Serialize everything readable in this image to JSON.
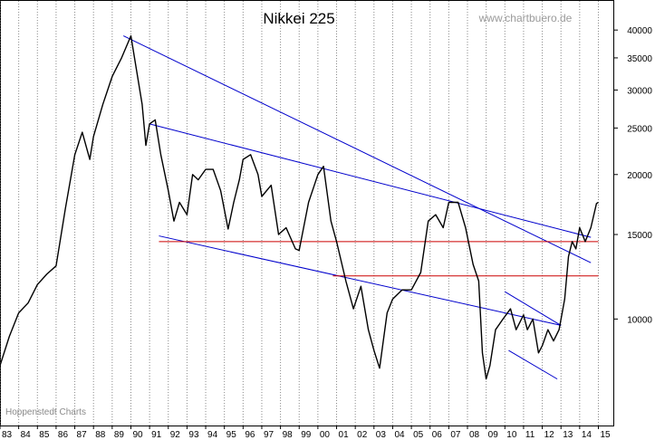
{
  "chart_data": {
    "type": "line",
    "title": "Nikkei 225",
    "watermark": "www.chartbuero.de",
    "source": "Hoppenstedt Charts",
    "yscale": "log",
    "ylim": [
      6000,
      46000
    ],
    "xlim": [
      1983.0,
      2015.8
    ],
    "grid": "vertical dotted lines at each year",
    "y_ticks": [
      10000,
      15000,
      20000,
      25000,
      30000,
      35000,
      40000
    ],
    "y_tick_labels": [
      "10000",
      "15000",
      "20000",
      "25000",
      "30000",
      "35000",
      "40000"
    ],
    "x_ticks": [
      1983,
      1984,
      1985,
      1986,
      1987,
      1988,
      1989,
      1990,
      1991,
      1992,
      1993,
      1994,
      1995,
      1996,
      1997,
      1998,
      1999,
      2000,
      2001,
      2002,
      2003,
      2004,
      2005,
      2006,
      2007,
      2008,
      2009,
      2010,
      2011,
      2012,
      2013,
      2014,
      2015
    ],
    "x_tick_labels": [
      "83",
      "84",
      "85",
      "86",
      "87",
      "88",
      "89",
      "90",
      "91",
      "92",
      "93",
      "94",
      "95",
      "96",
      "97",
      "98",
      "99",
      "00",
      "01",
      "02",
      "03",
      "04",
      "05",
      "06",
      "07",
      "08",
      "09",
      "10",
      "11",
      "12",
      "13",
      "14",
      "15"
    ],
    "series": [
      {
        "color": "#000000",
        "x": [
          1983.0,
          1983.5,
          1984.0,
          1984.5,
          1985.0,
          1985.5,
          1986.0,
          1986.5,
          1987.0,
          1987.4,
          1987.8,
          1988.0,
          1988.5,
          1989.0,
          1989.5,
          1990.0,
          1990.3,
          1990.6,
          1990.8,
          1991.0,
          1991.3,
          1991.6,
          1992.0,
          1992.3,
          1992.6,
          1993.0,
          1993.3,
          1993.6,
          1994.0,
          1994.4,
          1994.8,
          1995.2,
          1995.5,
          1995.8,
          1996.0,
          1996.4,
          1996.8,
          1997.0,
          1997.5,
          1997.9,
          1998.3,
          1998.8,
          1999.0,
          1999.5,
          2000.0,
          2000.3,
          2000.7,
          2001.0,
          2001.5,
          2001.9,
          2002.3,
          2002.7,
          2003.0,
          2003.3,
          2003.7,
          2004.0,
          2004.5,
          2005.0,
          2005.5,
          2005.9,
          2006.3,
          2006.7,
          2007.0,
          2007.5,
          2007.9,
          2008.3,
          2008.6,
          2008.8,
          2009.0,
          2009.2,
          2009.5,
          2009.9,
          2010.3,
          2010.6,
          2011.0,
          2011.2,
          2011.5,
          2011.8,
          2012.0,
          2012.3,
          2012.6,
          2012.9,
          2013.2,
          2013.4,
          2013.6,
          2013.8,
          2014.0,
          2014.3,
          2014.6,
          2014.9,
          2015.0
        ],
        "values": [
          8000,
          9200,
          10300,
          10800,
          11800,
          12400,
          12900,
          17000,
          22000,
          24500,
          21500,
          24000,
          28000,
          32000,
          35000,
          38900,
          33000,
          28000,
          23000,
          25500,
          26000,
          22000,
          18500,
          16000,
          17500,
          16500,
          20000,
          19500,
          20500,
          20500,
          18500,
          15400,
          17500,
          19500,
          21500,
          22000,
          20000,
          18000,
          19000,
          15000,
          15500,
          14000,
          13900,
          17500,
          20000,
          20800,
          16000,
          14500,
          12000,
          10500,
          11700,
          9500,
          8600,
          7900,
          10300,
          11000,
          11500,
          11500,
          12500,
          16000,
          16500,
          15500,
          17500,
          17500,
          15500,
          13000,
          12000,
          8500,
          7500,
          8000,
          9500,
          10000,
          10500,
          9500,
          10200,
          9500,
          10000,
          8500,
          8800,
          9500,
          9000,
          9500,
          11000,
          13500,
          14500,
          14000,
          15500,
          14500,
          15500,
          17400,
          17500
        ]
      }
    ],
    "trendlines": [
      {
        "color": "#0000cc",
        "points": [
          [
            1989.6,
            38900
          ],
          [
            2014.6,
            13100
          ]
        ]
      },
      {
        "color": "#0000cc",
        "points": [
          [
            1991.0,
            25500
          ],
          [
            2014.6,
            14800
          ]
        ]
      },
      {
        "color": "#0000cc",
        "points": [
          [
            1991.5,
            14900
          ],
          [
            2013.0,
            9700
          ]
        ]
      },
      {
        "color": "#0000cc",
        "points": [
          [
            2010.0,
            11400
          ],
          [
            2013.0,
            9700
          ]
        ]
      },
      {
        "color": "#0000cc",
        "points": [
          [
            2010.2,
            8600
          ],
          [
            2012.8,
            7500
          ]
        ]
      },
      {
        "color": "#cc0000",
        "points": [
          [
            1991.5,
            14500
          ],
          [
            2015.0,
            14500
          ]
        ]
      },
      {
        "color": "#cc0000",
        "points": [
          [
            2000.8,
            12300
          ],
          [
            2015.0,
            12300
          ]
        ]
      }
    ]
  }
}
